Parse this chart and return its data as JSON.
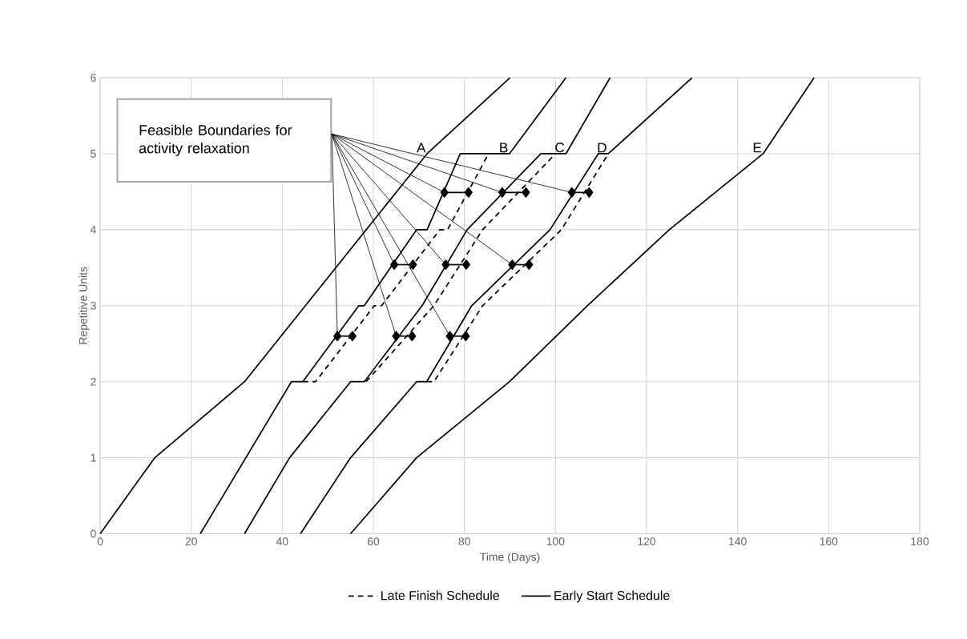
{
  "chart_data": {
    "type": "line",
    "xlabel": "Time (Days)",
    "ylabel": "Repetitive Units",
    "xlim": [
      0,
      180
    ],
    "xticks": [
      0,
      20,
      40,
      60,
      80,
      100,
      120,
      140,
      160,
      180
    ],
    "ylim": [
      0,
      6
    ],
    "yticks": [
      0,
      1,
      2,
      3,
      4,
      5,
      6
    ],
    "grid": true,
    "legend": "bottom",
    "series": [
      {
        "name": "Late Finish Schedule",
        "color": "#000000",
        "line_style": "dashed",
        "x": [
          44.5,
          47.3,
          60.2,
          61.8,
          74.6,
          76.3,
          85.3
        ],
        "values": [
          2,
          2,
          3,
          3,
          4,
          4,
          5
        ]
      },
      {
        "color": "#000000",
        "line_style": "dashed",
        "x": [
          58.4,
          73.3,
          84,
          100
        ],
        "values": [
          2,
          3,
          4,
          5
        ]
      },
      {
        "color": "#000000",
        "line_style": "dashed",
        "x": [
          71.7,
          73.3,
          84,
          101.3,
          111.6
        ],
        "values": [
          2,
          2,
          3,
          4,
          5
        ]
      },
      {
        "name": "Early Start Schedule",
        "color": "#000000",
        "line_style": "solid",
        "x": [
          0,
          12,
          31.7,
          71.8,
          90
        ],
        "values": [
          0,
          1,
          2,
          5,
          6
        ]
      },
      {
        "color": "#000000",
        "line_style": "solid",
        "x": [
          22,
          42,
          44.5,
          56.8,
          58,
          69.5,
          71.8,
          79.1,
          89.9,
          102.3
        ],
        "values": [
          0,
          2,
          2,
          3,
          3,
          4,
          4,
          5,
          5,
          6
        ]
      },
      {
        "color": "#000000",
        "line_style": "solid",
        "x": [
          31.7,
          41.6,
          55,
          58,
          70.7,
          80.6,
          96.8,
          102.3,
          112
        ],
        "values": [
          0,
          1,
          2,
          2,
          3,
          4,
          5,
          5,
          6
        ]
      },
      {
        "color": "#000000",
        "line_style": "solid",
        "x": [
          44,
          55,
          69.5,
          71.7,
          81.6,
          98.8,
          109.4,
          111.6,
          130
        ],
        "values": [
          0,
          1,
          2,
          2,
          3,
          4,
          5,
          5,
          6
        ]
      },
      {
        "color": "#000000",
        "line_style": "solid",
        "x": [
          55,
          69.5,
          89.9,
          107,
          125,
          145.6,
          156.8
        ],
        "values": [
          0,
          1,
          2,
          3,
          4,
          5,
          6
        ]
      },
      {
        "marker": "diamond",
        "color": "#000000",
        "line_style": "solid",
        "x": [
          52.1,
          55.4
        ],
        "values": [
          2.6,
          2.6
        ]
      },
      {
        "marker": "diamond",
        "color": "#000000",
        "line_style": "solid",
        "x": [
          65.0,
          68.5
        ],
        "values": [
          2.6,
          2.6
        ]
      },
      {
        "marker": "diamond",
        "color": "#000000",
        "line_style": "solid",
        "x": [
          76.8,
          80.3
        ],
        "values": [
          2.6,
          2.6
        ]
      },
      {
        "marker": "diamond",
        "color": "#000000",
        "line_style": "solid",
        "x": [
          64.6,
          68.7
        ],
        "values": [
          3.54,
          3.54
        ]
      },
      {
        "marker": "diamond",
        "color": "#000000",
        "line_style": "solid",
        "x": [
          75.9,
          80.4
        ],
        "values": [
          3.54,
          3.54
        ]
      },
      {
        "marker": "diamond",
        "color": "#000000",
        "line_style": "solid",
        "x": [
          90.5,
          94.2
        ],
        "values": [
          3.54,
          3.54
        ]
      },
      {
        "marker": "diamond",
        "color": "#000000",
        "line_style": "solid",
        "x": [
          75.6,
          80.9
        ],
        "values": [
          4.49,
          4.49
        ]
      },
      {
        "marker": "diamond",
        "color": "#000000",
        "line_style": "solid",
        "x": [
          88.3,
          93.5
        ],
        "values": [
          4.49,
          4.49
        ]
      },
      {
        "marker": "diamond",
        "color": "#000000",
        "line_style": "solid",
        "x": [
          103.6,
          107.4
        ],
        "values": [
          4.49,
          4.49
        ]
      }
    ],
    "annotations": [
      "Feasible Boundaries for activity relaxation",
      {
        "text": "A",
        "x": 71.8,
        "y": 5
      },
      {
        "text": "B",
        "x": 89.9,
        "y": 5
      },
      {
        "text": "C",
        "x": 102.3,
        "y": 5
      },
      {
        "text": "D",
        "x": 111.6,
        "y": 5
      },
      {
        "text": "E",
        "x": 145.6,
        "y": 5
      }
    ]
  }
}
